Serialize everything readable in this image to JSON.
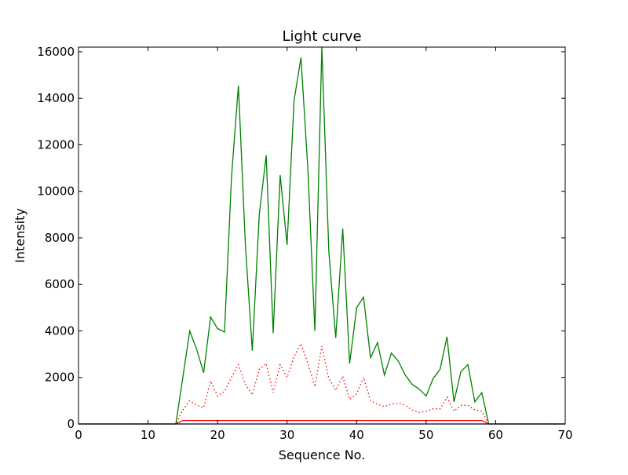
{
  "chart_data": {
    "type": "line",
    "title": "Light curve",
    "xlabel": "Sequence No.",
    "ylabel": "Intensity",
    "xlim": [
      0,
      70
    ],
    "ylim": [
      0,
      16200
    ],
    "xticks": [
      0,
      10,
      20,
      30,
      40,
      50,
      60,
      70
    ],
    "xtick_labels": [
      "0",
      "10",
      "20",
      "30",
      "40",
      "50",
      "60",
      "70"
    ],
    "yticks": [
      0,
      2000,
      4000,
      6000,
      8000,
      10000,
      12000,
      14000,
      16000
    ],
    "ytick_labels": [
      "0",
      "2000",
      "4000",
      "6000",
      "8000",
      "10000",
      "12000",
      "14000",
      "16000"
    ],
    "grid": false,
    "legend": false,
    "series": [
      {
        "color": "#008000",
        "style": "solid",
        "x": [
          0,
          14,
          15,
          16,
          17,
          18,
          19,
          20,
          21,
          22,
          23,
          24,
          25,
          26,
          27,
          28,
          29,
          30,
          31,
          32,
          33,
          34,
          35,
          36,
          37,
          38,
          39,
          40,
          41,
          42,
          43,
          44,
          45,
          46,
          47,
          48,
          49,
          50,
          51,
          52,
          53,
          54,
          55,
          56,
          57,
          58,
          59,
          70
        ],
        "y": [
          0,
          0,
          2000,
          4000,
          3200,
          2200,
          4600,
          4100,
          3950,
          10600,
          14550,
          7700,
          3150,
          9000,
          11550,
          3900,
          10700,
          7700,
          13900,
          15750,
          10900,
          4000,
          16200,
          7400,
          3700,
          8400,
          2600,
          5000,
          5450,
          2850,
          3500,
          2100,
          3050,
          2700,
          2100,
          1700,
          1500,
          1200,
          1950,
          2350,
          3750,
          950,
          2250,
          2550,
          950,
          1350,
          0,
          0
        ]
      },
      {
        "color": "#ff0000",
        "style": "dotted",
        "x": [
          0,
          14,
          15,
          16,
          17,
          18,
          19,
          20,
          21,
          22,
          23,
          24,
          25,
          26,
          27,
          28,
          29,
          30,
          31,
          32,
          33,
          34,
          35,
          36,
          37,
          38,
          39,
          40,
          41,
          42,
          43,
          44,
          45,
          46,
          47,
          48,
          49,
          50,
          51,
          52,
          53,
          54,
          55,
          56,
          57,
          58,
          59,
          70
        ],
        "y": [
          0,
          0,
          600,
          1000,
          800,
          700,
          1850,
          1200,
          1400,
          2000,
          2550,
          1700,
          1250,
          2350,
          2600,
          1350,
          2550,
          2000,
          2900,
          3450,
          2600,
          1600,
          3350,
          1950,
          1450,
          2050,
          1050,
          1300,
          2000,
          1000,
          850,
          750,
          850,
          900,
          800,
          600,
          500,
          550,
          650,
          650,
          1150,
          550,
          800,
          800,
          600,
          550,
          0,
          0
        ]
      },
      {
        "color": "#ff0000",
        "style": "solid",
        "x": [
          0,
          14,
          15,
          58,
          59,
          70
        ],
        "y": [
          0,
          0,
          150,
          150,
          0,
          0
        ]
      },
      {
        "color": "#0000ff",
        "style": "solid",
        "x": [
          0,
          70
        ],
        "y": [
          0,
          0
        ]
      }
    ]
  }
}
